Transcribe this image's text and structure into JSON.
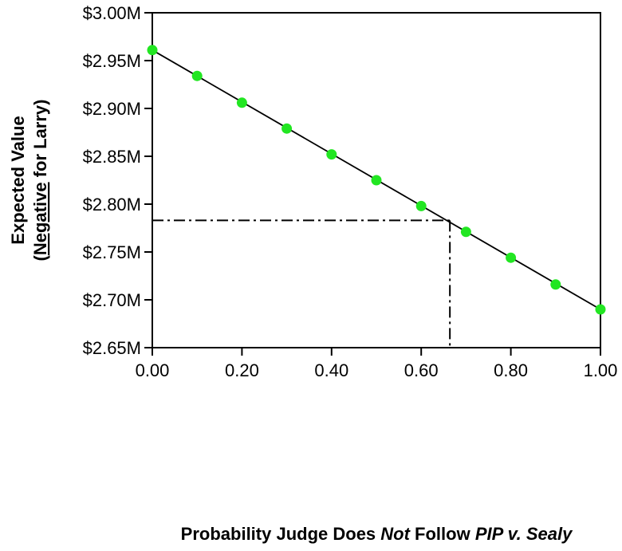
{
  "chart_data": {
    "type": "scatter",
    "x": [
      0.0,
      0.1,
      0.2,
      0.3,
      0.4,
      0.5,
      0.6,
      0.7,
      0.8,
      0.9,
      1.0
    ],
    "values": [
      2.961,
      2.934,
      2.906,
      2.879,
      2.852,
      2.825,
      2.798,
      2.771,
      2.744,
      2.716,
      2.69
    ],
    "point_color": "#22e622",
    "line_color": "#000000",
    "fit_line": {
      "x": [
        0.0,
        1.0
      ],
      "y": [
        2.961,
        2.69
      ]
    },
    "reference_point": {
      "x": 0.664,
      "y": 2.783
    },
    "xlim": [
      0.0,
      1.0
    ],
    "ylim": [
      2.65,
      3.0
    ],
    "x_ticks": [
      0.0,
      0.2,
      0.4,
      0.6,
      0.8,
      1.0
    ],
    "x_tick_labels": [
      "0.00",
      "0.20",
      "0.40",
      "0.60",
      "0.80",
      "1.00"
    ],
    "y_ticks": [
      2.65,
      2.7,
      2.75,
      2.8,
      2.85,
      2.9,
      2.95,
      3.0
    ],
    "y_tick_labels": [
      "$2.65M",
      "$2.70M",
      "$2.75M",
      "$2.80M",
      "$2.85M",
      "$2.90M",
      "$2.95M",
      "$3.00M"
    ],
    "xlabel": {
      "part1": "Probability Judge Does ",
      "part2": "Not",
      "part3": " Follow ",
      "part4": "PIP v. Sealy"
    },
    "ylabel": {
      "line1": "Expected Value",
      "line2_open": "(",
      "line2_underlined": "Negative",
      "line2_rest": " for Larry)"
    },
    "grid": false,
    "legend": "none"
  }
}
